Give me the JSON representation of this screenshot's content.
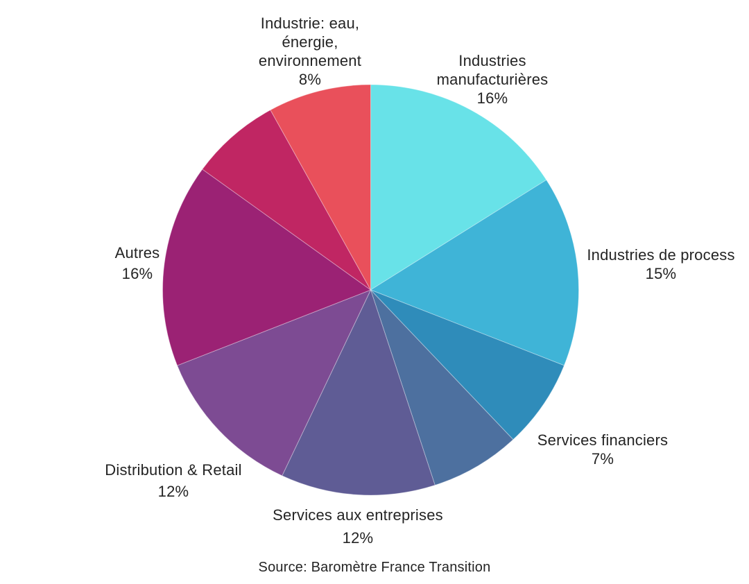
{
  "chart_data": {
    "type": "pie",
    "title": "",
    "legend": "none",
    "direction": "clockwise",
    "start_angle_deg": 0,
    "background": "#ffffff",
    "text_color": "#242424",
    "source": "Source: Baromètre France Transition",
    "segments": [
      {
        "label": "Industries manufacturières",
        "value": 16,
        "display": "16%",
        "color": "#68e2e8"
      },
      {
        "label": "Industries de process",
        "value": 15,
        "display": "15%",
        "color": "#3fb4d7"
      },
      {
        "label": "Services financiers",
        "value": 7,
        "display": "7%",
        "color": "#2f8cba"
      },
      {
        "label": "",
        "value": 7,
        "display": "",
        "color": "#4d709f"
      },
      {
        "label": "Services aux entreprises",
        "value": 12,
        "display": "12%",
        "color": "#5f5c95"
      },
      {
        "label": "Distribution & Retail",
        "value": 12,
        "display": "12%",
        "color": "#7d4b93"
      },
      {
        "label": "Autres",
        "value": 16,
        "display": "16%",
        "color": "#9b2274"
      },
      {
        "label": "",
        "value": 7,
        "display": "",
        "color": "#c02663"
      },
      {
        "label": "Industrie: eau, énergie, environnement",
        "value": 8,
        "display": "8%",
        "color": "#e9505b"
      }
    ]
  }
}
